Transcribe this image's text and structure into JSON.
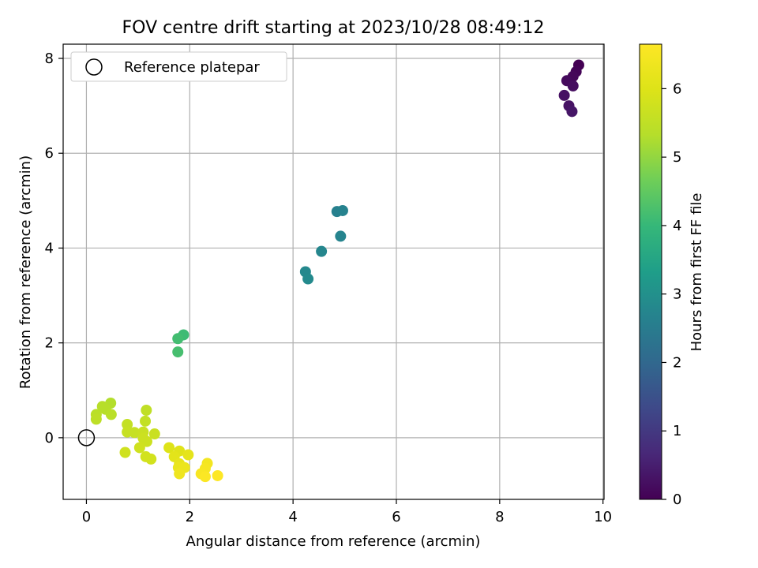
{
  "chart_data": {
    "type": "scatter",
    "title": "FOV centre drift starting at 2023/10/28 08:49:12",
    "xlabel": "Angular distance from reference (arcmin)",
    "ylabel": "Rotation from reference (arcmin)",
    "xlim": [
      -0.45,
      10.02
    ],
    "ylim": [
      -1.3,
      8.3
    ],
    "xticks": [
      0,
      2,
      4,
      6,
      8,
      10
    ],
    "yticks": [
      0,
      2,
      4,
      6,
      8
    ],
    "grid": true,
    "legend": {
      "placement": "top-left",
      "label": "Reference platepar"
    },
    "reference_point": {
      "x": 0,
      "y": 0
    },
    "colorbar": {
      "label": "Hours from first FF file",
      "range": [
        0,
        6.65
      ],
      "ticks": [
        0,
        1,
        2,
        3,
        4,
        5,
        6
      ],
      "colormap": "viridis"
    },
    "points": [
      {
        "x": 9.53,
        "y": 7.86,
        "c": 0.0
      },
      {
        "x": 9.48,
        "y": 7.72,
        "c": 0.05
      },
      {
        "x": 9.42,
        "y": 7.62,
        "c": 0.1
      },
      {
        "x": 9.3,
        "y": 7.53,
        "c": 0.15
      },
      {
        "x": 9.42,
        "y": 7.42,
        "c": 0.2
      },
      {
        "x": 9.25,
        "y": 7.22,
        "c": 0.25
      },
      {
        "x": 9.34,
        "y": 7.0,
        "c": 0.3
      },
      {
        "x": 9.4,
        "y": 6.88,
        "c": 0.35
      },
      {
        "x": 4.85,
        "y": 4.77,
        "c": 2.6
      },
      {
        "x": 4.96,
        "y": 4.79,
        "c": 2.65
      },
      {
        "x": 4.92,
        "y": 4.25,
        "c": 2.7
      },
      {
        "x": 4.55,
        "y": 3.93,
        "c": 2.75
      },
      {
        "x": 4.24,
        "y": 3.5,
        "c": 2.8
      },
      {
        "x": 4.29,
        "y": 3.35,
        "c": 2.85
      },
      {
        "x": 1.88,
        "y": 2.17,
        "c": 4.1
      },
      {
        "x": 1.77,
        "y": 2.09,
        "c": 4.15
      },
      {
        "x": 1.77,
        "y": 1.81,
        "c": 4.2
      },
      {
        "x": 0.47,
        "y": 0.73,
        "c": 5.3
      },
      {
        "x": 0.31,
        "y": 0.66,
        "c": 5.35
      },
      {
        "x": 0.37,
        "y": 0.6,
        "c": 5.35
      },
      {
        "x": 0.19,
        "y": 0.49,
        "c": 5.4
      },
      {
        "x": 0.48,
        "y": 0.49,
        "c": 5.4
      },
      {
        "x": 0.19,
        "y": 0.39,
        "c": 5.45
      },
      {
        "x": 1.16,
        "y": 0.58,
        "c": 5.5
      },
      {
        "x": 1.14,
        "y": 0.35,
        "c": 5.55
      },
      {
        "x": 0.79,
        "y": 0.28,
        "c": 5.55
      },
      {
        "x": 0.79,
        "y": 0.12,
        "c": 5.6
      },
      {
        "x": 0.93,
        "y": 0.11,
        "c": 5.6
      },
      {
        "x": 1.1,
        "y": 0.12,
        "c": 5.65
      },
      {
        "x": 1.32,
        "y": 0.08,
        "c": 5.65
      },
      {
        "x": 1.1,
        "y": -0.01,
        "c": 5.7
      },
      {
        "x": 1.17,
        "y": -0.08,
        "c": 5.7
      },
      {
        "x": 1.03,
        "y": -0.21,
        "c": 5.75
      },
      {
        "x": 0.75,
        "y": -0.31,
        "c": 5.75
      },
      {
        "x": 1.15,
        "y": -0.4,
        "c": 5.8
      },
      {
        "x": 1.25,
        "y": -0.45,
        "c": 5.8
      },
      {
        "x": 1.6,
        "y": -0.21,
        "c": 6.0
      },
      {
        "x": 1.8,
        "y": -0.28,
        "c": 6.05
      },
      {
        "x": 1.7,
        "y": -0.4,
        "c": 6.1
      },
      {
        "x": 1.97,
        "y": -0.36,
        "c": 6.15
      },
      {
        "x": 1.8,
        "y": -0.55,
        "c": 6.2
      },
      {
        "x": 1.78,
        "y": -0.63,
        "c": 6.25
      },
      {
        "x": 1.9,
        "y": -0.63,
        "c": 6.3
      },
      {
        "x": 1.8,
        "y": -0.76,
        "c": 6.35
      },
      {
        "x": 2.34,
        "y": -0.54,
        "c": 6.45
      },
      {
        "x": 2.3,
        "y": -0.65,
        "c": 6.5
      },
      {
        "x": 2.22,
        "y": -0.76,
        "c": 6.55
      },
      {
        "x": 2.3,
        "y": -0.82,
        "c": 6.6
      },
      {
        "x": 2.54,
        "y": -0.8,
        "c": 6.65
      }
    ]
  }
}
